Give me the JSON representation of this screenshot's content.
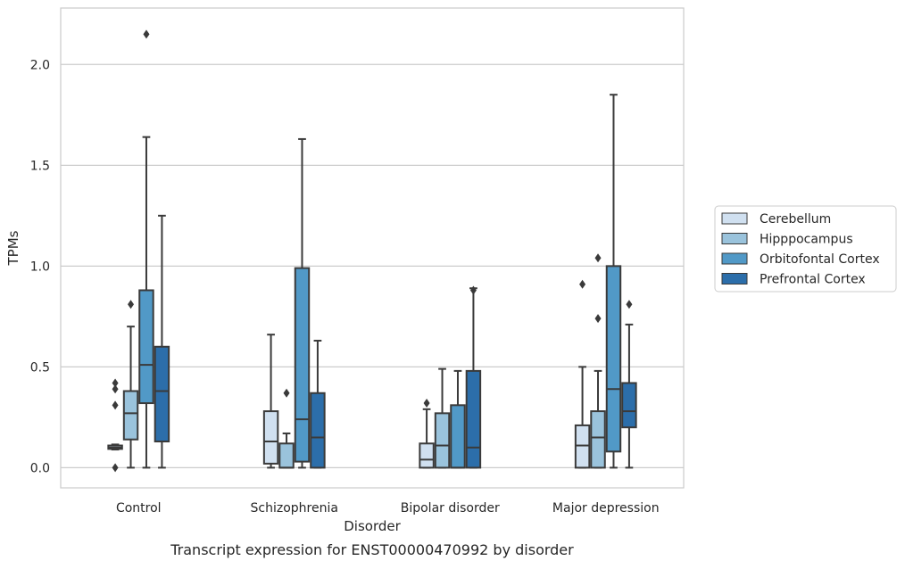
{
  "chart_data": {
    "type": "boxplot",
    "xlabel": "Disorder",
    "ylabel": "TPMs",
    "caption": "Transcript expression for ENST00000470992 by disorder",
    "ylim": [
      -0.1,
      2.28
    ],
    "yticks": [
      0.0,
      0.5,
      1.0,
      1.5,
      2.0
    ],
    "ytick_labels": [
      "0.0",
      "0.5",
      "1.0",
      "1.5",
      "2.0"
    ],
    "grid": "horizontal",
    "legend_position": "right",
    "categories": [
      "Control",
      "Schizophrenia",
      "Bipolar disorder",
      "Major depression"
    ],
    "series": [
      {
        "name": "Cerebellum",
        "color": "#d0e0f0",
        "boxes": [
          {
            "whislo": 0.09,
            "q1": 0.093,
            "med": 0.1,
            "q3": 0.11,
            "whishi": 0.115,
            "fliers": [
              0.42,
              0.39,
              0.31,
              0.0
            ]
          },
          {
            "whislo": 0.0,
            "q1": 0.02,
            "med": 0.13,
            "q3": 0.28,
            "whishi": 0.66,
            "fliers": []
          },
          {
            "whislo": 0.0,
            "q1": 0.0,
            "med": 0.04,
            "q3": 0.12,
            "whishi": 0.29,
            "fliers": [
              0.32
            ]
          },
          {
            "whislo": 0.0,
            "q1": 0.0,
            "med": 0.11,
            "q3": 0.21,
            "whishi": 0.5,
            "fliers": [
              0.91
            ]
          }
        ]
      },
      {
        "name": "Hipppocampus",
        "color": "#9ac3dc",
        "boxes": [
          {
            "whislo": 0.0,
            "q1": 0.14,
            "med": 0.27,
            "q3": 0.38,
            "whishi": 0.7,
            "fliers": [
              0.81
            ]
          },
          {
            "whislo": 0.0,
            "q1": 0.0,
            "med": 0.0,
            "q3": 0.12,
            "whishi": 0.17,
            "fliers": [
              0.37
            ]
          },
          {
            "whislo": 0.0,
            "q1": 0.0,
            "med": 0.11,
            "q3": 0.27,
            "whishi": 0.49,
            "fliers": []
          },
          {
            "whislo": 0.0,
            "q1": 0.0,
            "med": 0.15,
            "q3": 0.28,
            "whishi": 0.48,
            "fliers": [
              0.74,
              1.04
            ]
          }
        ]
      },
      {
        "name": "Orbitofontal Cortex",
        "color": "#5199c7",
        "boxes": [
          {
            "whislo": 0.0,
            "q1": 0.32,
            "med": 0.51,
            "q3": 0.88,
            "whishi": 1.64,
            "fliers": [
              2.15
            ]
          },
          {
            "whislo": 0.0,
            "q1": 0.03,
            "med": 0.24,
            "q3": 0.99,
            "whishi": 1.63,
            "fliers": []
          },
          {
            "whislo": 0.0,
            "q1": 0.0,
            "med": 0.0,
            "q3": 0.31,
            "whishi": 0.48,
            "fliers": []
          },
          {
            "whislo": 0.0,
            "q1": 0.08,
            "med": 0.39,
            "q3": 1.0,
            "whishi": 1.85,
            "fliers": []
          }
        ]
      },
      {
        "name": "Prefrontal Cortex",
        "color": "#2c6eaa",
        "boxes": [
          {
            "whislo": 0.0,
            "q1": 0.13,
            "med": 0.38,
            "q3": 0.6,
            "whishi": 1.25,
            "fliers": []
          },
          {
            "whislo": 0.0,
            "q1": 0.0,
            "med": 0.15,
            "q3": 0.37,
            "whishi": 0.63,
            "fliers": []
          },
          {
            "whislo": 0.0,
            "q1": 0.0,
            "med": 0.1,
            "q3": 0.48,
            "whishi": 0.89,
            "fliers": [
              0.88
            ]
          },
          {
            "whislo": 0.0,
            "q1": 0.2,
            "med": 0.28,
            "q3": 0.42,
            "whishi": 0.71,
            "fliers": [
              0.81
            ]
          }
        ]
      }
    ]
  }
}
